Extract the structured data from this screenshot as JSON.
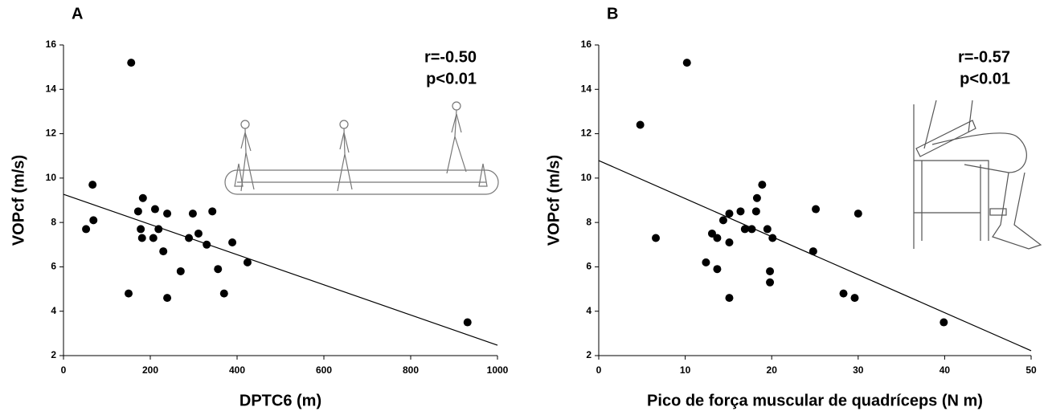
{
  "chart_data": [
    {
      "type": "scatter",
      "label": "A",
      "x_label": "DPTC6 (m)",
      "y_label": "VOPcf (m/s)",
      "annotations": [
        "r=-0.50",
        "p<0.01"
      ],
      "color": "#000000",
      "x": [
        156,
        67,
        52,
        69,
        172,
        183,
        178,
        181,
        211,
        219,
        207,
        230,
        239,
        150,
        239,
        270,
        298,
        289,
        311,
        330,
        343,
        356,
        370,
        389,
        424,
        931
      ],
      "y": [
        15.2,
        9.7,
        7.7,
        8.1,
        8.5,
        9.1,
        7.7,
        7.3,
        8.6,
        7.7,
        7.3,
        6.7,
        8.4,
        4.8,
        4.6,
        5.8,
        8.4,
        7.3,
        7.5,
        7.0,
        8.5,
        5.9,
        4.8,
        7.1,
        6.2,
        3.5
      ],
      "trendline": {
        "x": [
          0,
          1000
        ],
        "y": [
          9.27,
          2.47
        ]
      },
      "xlim": [
        0,
        1000
      ],
      "xticks": [
        0,
        200,
        400,
        600,
        800,
        1000
      ],
      "ylim": [
        2,
        16
      ],
      "yticks": [
        2,
        4,
        6,
        8,
        10,
        12,
        14,
        16
      ]
    },
    {
      "type": "scatter",
      "label": "B",
      "x_label": "Pico de força muscular de quadríceps (N m)",
      "y_label": "VOPcf (m/s)",
      "annotations": [
        "r=-0.57",
        "p<0.01"
      ],
      "color": "#000000",
      "x": [
        10.2,
        4.8,
        6.6,
        12.4,
        13.1,
        13.7,
        13.7,
        14.4,
        15.1,
        15.1,
        15.1,
        16.4,
        16.9,
        17.7,
        18.2,
        18.3,
        18.9,
        19.5,
        19.8,
        19.8,
        20.1,
        24.8,
        25.1,
        30.0,
        28.3,
        29.6,
        39.9
      ],
      "y": [
        15.2,
        12.4,
        7.3,
        6.2,
        7.5,
        5.9,
        7.3,
        8.1,
        8.4,
        7.1,
        4.6,
        8.5,
        7.7,
        7.7,
        8.5,
        9.1,
        9.7,
        7.7,
        5.8,
        5.3,
        7.3,
        6.7,
        8.6,
        8.4,
        4.8,
        4.6,
        3.5
      ],
      "trendline": {
        "x": [
          0,
          50
        ],
        "y": [
          10.79,
          2.22
        ]
      },
      "xlim": [
        0,
        50
      ],
      "xticks": [
        0,
        10,
        20,
        30,
        40,
        50
      ],
      "ylim": [
        2,
        16
      ],
      "yticks": [
        2,
        4,
        6,
        8,
        10,
        12,
        14,
        16
      ]
    }
  ]
}
